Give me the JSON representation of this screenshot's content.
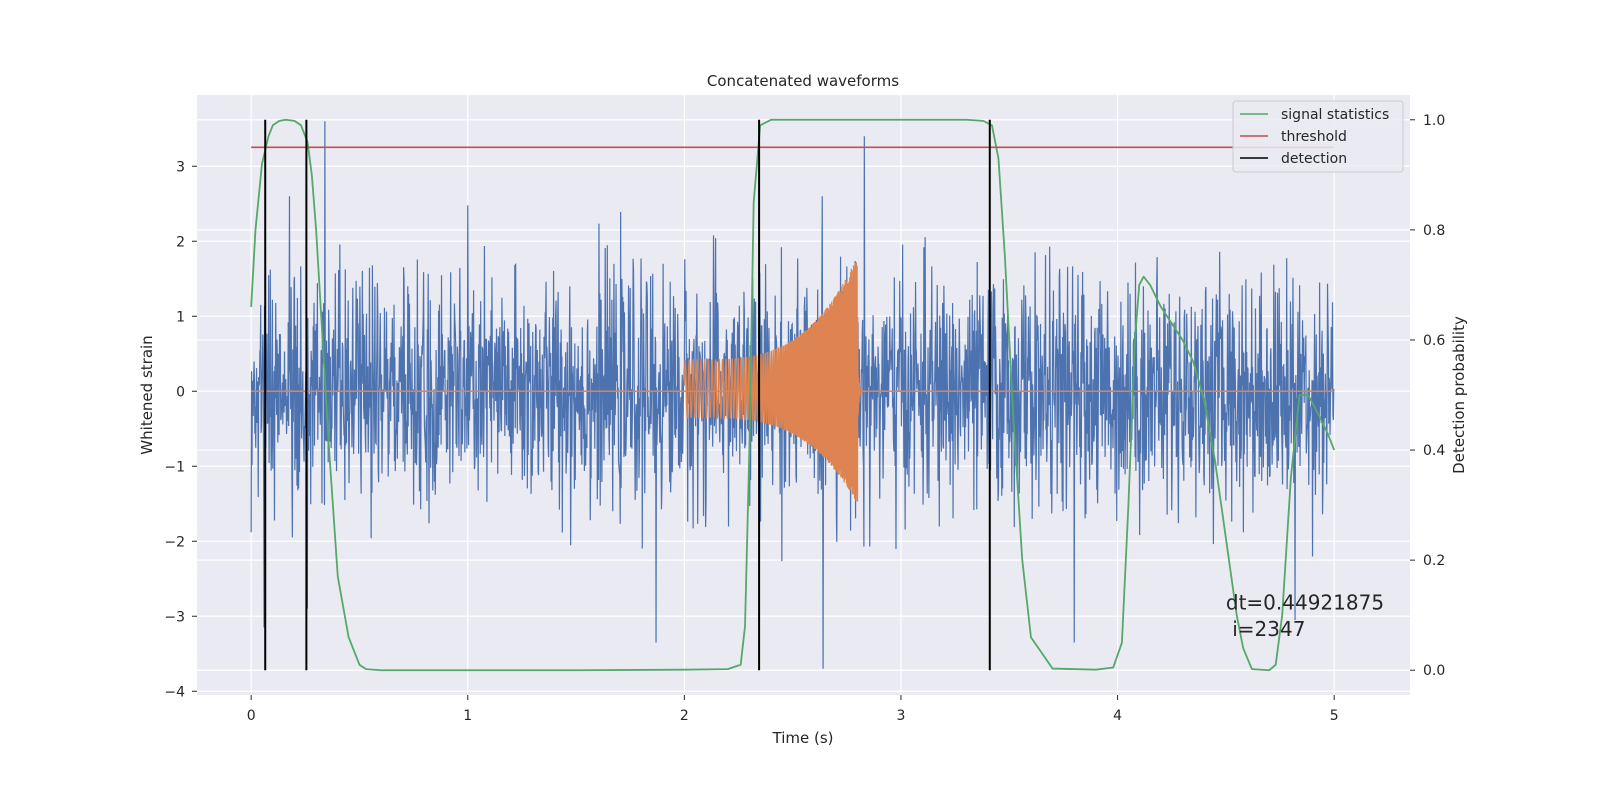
{
  "chart_data": {
    "type": "line",
    "title": "Concatenated waveforms",
    "xlabel": "Time (s)",
    "ylabel": "Whitened strain",
    "y2label": "Detection probability",
    "xlim": [
      -0.25,
      5.35
    ],
    "ylim": [
      -4.05,
      3.95
    ],
    "y2lim": [
      -0.045,
      1.045
    ],
    "xticks": [
      0,
      1,
      2,
      3,
      4,
      5
    ],
    "xtick_labels": [
      "0",
      "1",
      "2",
      "3",
      "4",
      "5"
    ],
    "yticks": [
      -4,
      -3,
      -2,
      -1,
      0,
      1,
      2,
      3
    ],
    "ytick_labels": [
      "−4",
      "−3",
      "−2",
      "−1",
      "0",
      "1",
      "2",
      "3"
    ],
    "y2ticks": [
      0.0,
      0.2,
      0.4,
      0.6,
      0.8,
      1.0
    ],
    "y2tick_labels": [
      "0.0",
      "0.2",
      "0.4",
      "0.6",
      "0.8",
      "1.0"
    ],
    "grid": true,
    "legend_position": "top-right",
    "series": [
      {
        "name": "",
        "axis": "left",
        "kind": "noise",
        "color": "#4c72b0",
        "x_range": [
          0,
          5
        ],
        "typical_amplitude": [
          -1.5,
          1.5
        ],
        "peaks": [
          [
            0.34,
            3.6
          ],
          [
            0.06,
            -3.15
          ],
          [
            0.26,
            -2.9
          ],
          [
            2.83,
            3.4
          ],
          [
            2.64,
            -3.7
          ],
          [
            1.87,
            -3.35
          ],
          [
            3.8,
            -3.35
          ],
          [
            4.82,
            -3.05
          ]
        ]
      },
      {
        "name": "",
        "axis": "left",
        "kind": "chirp",
        "color": "#dd8452",
        "x_range": [
          2.0,
          2.8
        ],
        "envelope_start": 0.42,
        "envelope_peak": 1.8,
        "envelope_peak_neg": -1.5
      },
      {
        "name": "signal statistics",
        "axis": "right",
        "color": "#55a868",
        "x": [
          0.0,
          0.02,
          0.05,
          0.08,
          0.1,
          0.13,
          0.16,
          0.2,
          0.23,
          0.26,
          0.28,
          0.3,
          0.33,
          0.36,
          0.4,
          0.45,
          0.5,
          0.53,
          0.6,
          1.0,
          1.5,
          2.0,
          2.2,
          2.26,
          2.28,
          2.3,
          2.32,
          2.35,
          2.4,
          2.6,
          3.0,
          3.3,
          3.38,
          3.42,
          3.45,
          3.48,
          3.52,
          3.56,
          3.6,
          3.7,
          3.9,
          3.98,
          4.02,
          4.05,
          4.08,
          4.1,
          4.12,
          4.15,
          4.2,
          4.3,
          4.35,
          4.4,
          4.45,
          4.5,
          4.55,
          4.58,
          4.62,
          4.7,
          4.73,
          4.76,
          4.8,
          4.84,
          4.88,
          4.92,
          4.97,
          5.0
        ],
        "y": [
          0.66,
          0.8,
          0.92,
          0.97,
          0.99,
          0.998,
          1.0,
          0.998,
          0.99,
          0.96,
          0.9,
          0.8,
          0.6,
          0.4,
          0.17,
          0.06,
          0.01,
          0.002,
          0.0,
          0.0,
          0.0,
          0.001,
          0.002,
          0.01,
          0.08,
          0.4,
          0.85,
          0.99,
          1.0,
          1.0,
          1.0,
          1.0,
          0.998,
          0.99,
          0.93,
          0.75,
          0.45,
          0.2,
          0.06,
          0.003,
          0.001,
          0.005,
          0.05,
          0.3,
          0.6,
          0.7,
          0.715,
          0.7,
          0.66,
          0.6,
          0.56,
          0.49,
          0.38,
          0.24,
          0.1,
          0.04,
          0.002,
          0.0,
          0.01,
          0.1,
          0.35,
          0.5,
          0.5,
          0.47,
          0.43,
          0.4
        ]
      },
      {
        "name": "threshold",
        "axis": "right",
        "color": "#c44e52",
        "x": [
          0,
          5
        ],
        "y": [
          0.95,
          0.95
        ]
      },
      {
        "name": "detection",
        "axis": "right",
        "color": "#000000",
        "x_positions": [
          0.065,
          0.255,
          2.345,
          3.41
        ],
        "y_range": [
          0.0,
          1.0
        ]
      }
    ],
    "annotation_text_line1": "dt=0.44921875",
    "annotation_text_line2": " i=2347",
    "annotation_x": 4.5,
    "annotation_y2_line1": 0.11,
    "annotation_y2_line2": 0.062
  }
}
